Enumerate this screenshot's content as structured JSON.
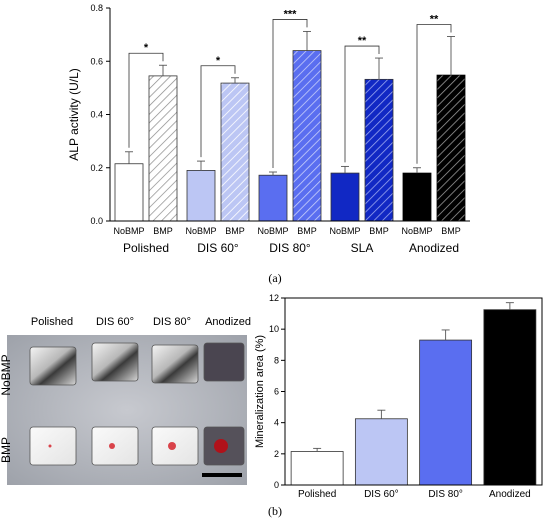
{
  "panel_labels": {
    "a": "(a)",
    "b": "(b)"
  },
  "photo": {
    "column_labels": [
      "Polished",
      "DIS 60°",
      "DIS 80°",
      "Anodized"
    ],
    "row_labels": [
      "NoBMP",
      "BMP"
    ]
  },
  "chart_data": [
    {
      "type": "bar",
      "ylabel": "ALP activity (U/L)",
      "ylim": [
        0,
        0.8
      ],
      "yticks": [
        0.0,
        0.2,
        0.4,
        0.6,
        0.8
      ],
      "groups": [
        "Polished",
        "DIS 60°",
        "DIS 80°",
        "SLA",
        "Anodized"
      ],
      "subcategories": [
        "NoBMP",
        "BMP"
      ],
      "values": [
        [
          0.215,
          0.545
        ],
        [
          0.19,
          0.518
        ],
        [
          0.172,
          0.64
        ],
        [
          0.18,
          0.532
        ],
        [
          0.18,
          0.548
        ]
      ],
      "errors": [
        [
          0.045,
          0.04
        ],
        [
          0.035,
          0.02
        ],
        [
          0.012,
          0.072
        ],
        [
          0.025,
          0.08
        ],
        [
          0.02,
          0.145
        ]
      ],
      "significance": [
        "*",
        "*",
        "***",
        "**",
        "**"
      ],
      "colors": [
        "#ffffff",
        "#bcc6f4",
        "#5a6ef0",
        "#1128c4",
        "#000000"
      ],
      "hatch": "BMP bars hatched",
      "grid": false
    },
    {
      "type": "bar",
      "ylabel": "Mineralization area (%)",
      "ylim": [
        0,
        12
      ],
      "yticks": [
        0,
        2,
        4,
        6,
        8,
        10,
        12
      ],
      "categories": [
        "Polished",
        "DIS 60°",
        "DIS 80°",
        "Anodized"
      ],
      "values": [
        2.15,
        4.25,
        9.3,
        11.25
      ],
      "errors": [
        0.2,
        0.55,
        0.65,
        0.45
      ],
      "colors": [
        "#ffffff",
        "#bcc6f4",
        "#5a6ef0",
        "#000000"
      ],
      "grid": false
    }
  ]
}
